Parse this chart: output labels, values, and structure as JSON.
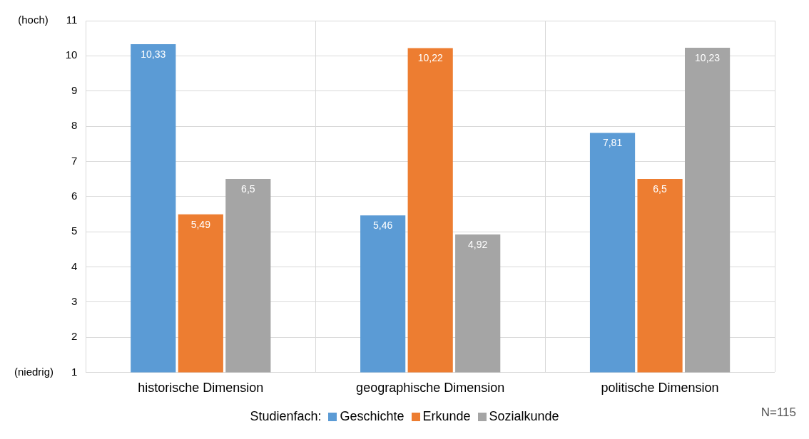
{
  "chart_data": {
    "type": "bar",
    "categories": [
      "historische Dimension",
      "geographische Dimension",
      "politische Dimension"
    ],
    "series": [
      {
        "name": "Geschichte",
        "color": "#5b9bd5",
        "values": [
          10.33,
          5.46,
          7.81
        ],
        "value_labels": [
          "10,33",
          "5,46",
          "7,81"
        ]
      },
      {
        "name": "Erkunde",
        "color": "#ed7d31",
        "values": [
          5.49,
          10.22,
          6.5
        ],
        "value_labels": [
          "5,49",
          "10,22",
          "6,5"
        ]
      },
      {
        "name": "Sozialkunde",
        "color": "#a5a5a5",
        "values": [
          6.5,
          4.92,
          10.23
        ],
        "value_labels": [
          "6,5",
          "4,92",
          "10,23"
        ]
      }
    ],
    "ylim": [
      1,
      11
    ],
    "yticks": [
      {
        "value": 1,
        "label": "(niedrig)      1"
      },
      2,
      3,
      4,
      5,
      6,
      7,
      8,
      9,
      10,
      {
        "value": 11,
        "label": "(hoch)      11"
      }
    ],
    "grid": true,
    "legend": "bottom",
    "legend_title": "Studienfach:",
    "annotations": [
      "N=115"
    ]
  }
}
